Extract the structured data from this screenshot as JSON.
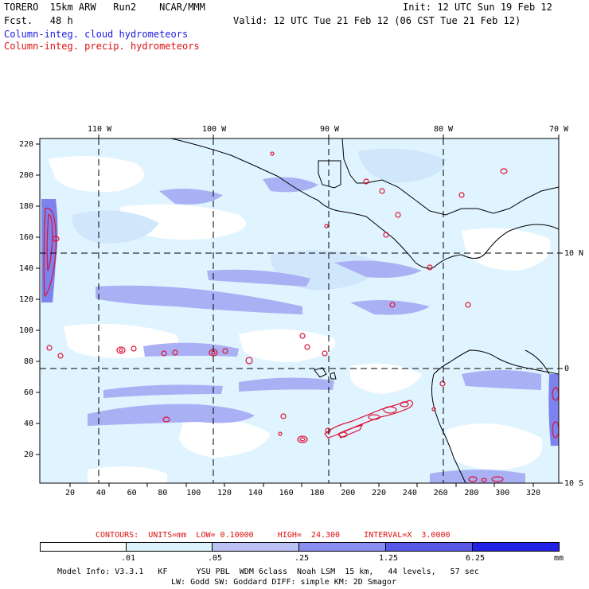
{
  "header": {
    "title": "TORERO  15km ARW   Run2    NCAR/MMM",
    "forecast": "Fcst.   48 h",
    "init": "Init: 12 UTC Sun 19 Feb 12",
    "valid": "Valid: 12 UTC Tue 21 Feb 12 (06 CST Tue 21 Feb 12)",
    "field1": "Column-integ. cloud hydrometeors",
    "field2": "Column-integ. precip. hydrometeors"
  },
  "colors": {
    "field1_text": "#1a1adc",
    "field2_text": "#dd1111",
    "precip_contour": "#dd1133",
    "cloud_light": "#e0f4ff",
    "cloud_pale": "#d0e6fb",
    "cloud_mid": "#aab0f4",
    "cloud_deep": "#7c82ee",
    "cloud_darker": "#5a5ae8",
    "cloud_darkest": "#2222e6"
  },
  "map": {
    "top_longitudes": [
      "110 W",
      "100 W",
      "90 W",
      "80 W",
      "70 W"
    ],
    "right_latitudes": [
      "10 N",
      "0",
      "10 S"
    ],
    "left_y_ticks": [
      "220",
      "200",
      "180",
      "160",
      "140",
      "120",
      "100",
      "80",
      "60",
      "40",
      "20"
    ],
    "bottom_x_ticks": [
      "20",
      "40",
      "60",
      "80",
      "100",
      "120",
      "140",
      "160",
      "180",
      "200",
      "220",
      "240",
      "260",
      "280",
      "300",
      "320"
    ]
  },
  "contour_info": {
    "label": "CONTOURS:  UNITS=mm  LOW= 0.10000     HIGH=  24.300     INTERVAL=X  3.0000"
  },
  "color_scale": {
    "ticks": [
      ".01",
      ".05",
      ".25",
      "1.25",
      "6.25"
    ],
    "units": "mm",
    "fills": [
      "#ffffff",
      "#dcf3fb",
      "#bcc2f6",
      "#8a8ef0",
      "#5858e8",
      "#2222e6"
    ]
  },
  "model_info": {
    "line1": "Model Info: V3.3.1   KF      YSU PBL  WDM 6class  Noah LSM  15 km,   44 levels,   57 sec",
    "line2": "LW: Godd SW: Goddard DIFF: simple KM: 2D Smagor"
  }
}
